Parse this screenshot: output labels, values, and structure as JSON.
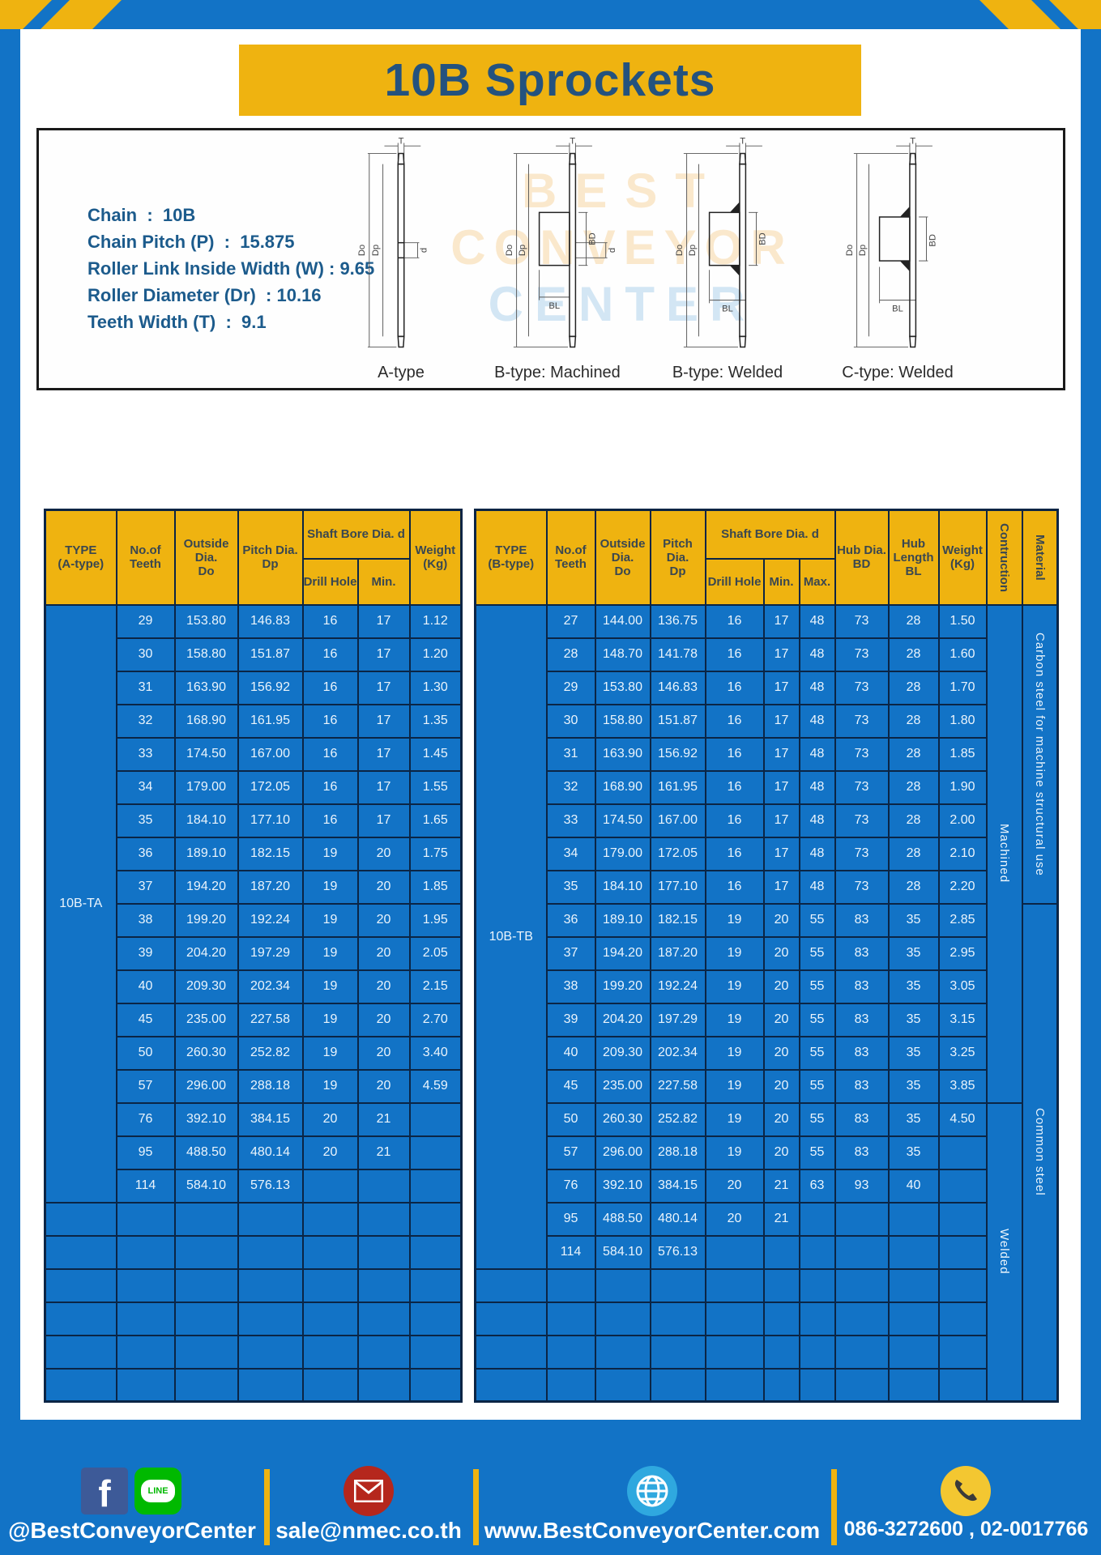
{
  "page": {
    "title": "10B Sprockets"
  },
  "specs": {
    "lines": [
      "Chain  :  10B",
      "Chain Pitch (P)  :  15.875",
      "Roller Link Inside Width (W) : 9.65",
      "Roller Diameter (Dr)  : 10.16",
      "Teeth Width (T)  :  9.1"
    ]
  },
  "diagram": {
    "type_labels": [
      "A-type",
      "B-type: Machined",
      "B-type: Welded",
      "C-type: Welded"
    ],
    "dims": {
      "t": "T",
      "do": "Do",
      "dp": "Dp",
      "d": "d",
      "bl": "BL",
      "bd": "BD"
    },
    "watermark": [
      "BEST",
      "CONVEYOR",
      "CENTER"
    ]
  },
  "colors": {
    "frame_blue": "#1273C6",
    "header_yellow": "#EFB310",
    "cell_blue": "#1273C6",
    "border_navy": "#0B2545",
    "title_blue": "#24527E"
  },
  "tables": {
    "left": {
      "header": {
        "type": "TYPE\n(A-type)",
        "teeth": "No.of\nTeeth",
        "outside": "Outside\nDia.\nDo",
        "pitch": "Pitch Dia.\nDp",
        "shaft_bore": "Shaft Bore Dia. d",
        "drill_hole": "Drill Hole",
        "min": "Min.",
        "weight": "Weight\n(Kg)"
      },
      "type_label": "10B-TA",
      "blank_rows": 6,
      "rows": [
        [
          "29",
          "153.80",
          "146.83",
          "16",
          "17",
          "1.12"
        ],
        [
          "30",
          "158.80",
          "151.87",
          "16",
          "17",
          "1.20"
        ],
        [
          "31",
          "163.90",
          "156.92",
          "16",
          "17",
          "1.30"
        ],
        [
          "32",
          "168.90",
          "161.95",
          "16",
          "17",
          "1.35"
        ],
        [
          "33",
          "174.50",
          "167.00",
          "16",
          "17",
          "1.45"
        ],
        [
          "34",
          "179.00",
          "172.05",
          "16",
          "17",
          "1.55"
        ],
        [
          "35",
          "184.10",
          "177.10",
          "16",
          "17",
          "1.65"
        ],
        [
          "36",
          "189.10",
          "182.15",
          "19",
          "20",
          "1.75"
        ],
        [
          "37",
          "194.20",
          "187.20",
          "19",
          "20",
          "1.85"
        ],
        [
          "38",
          "199.20",
          "192.24",
          "19",
          "20",
          "1.95"
        ],
        [
          "39",
          "204.20",
          "197.29",
          "19",
          "20",
          "2.05"
        ],
        [
          "40",
          "209.30",
          "202.34",
          "19",
          "20",
          "2.15"
        ],
        [
          "45",
          "235.00",
          "227.58",
          "19",
          "20",
          "2.70"
        ],
        [
          "50",
          "260.30",
          "252.82",
          "19",
          "20",
          "3.40"
        ],
        [
          "57",
          "296.00",
          "288.18",
          "19",
          "20",
          "4.59"
        ],
        [
          "76",
          "392.10",
          "384.15",
          "20",
          "21",
          ""
        ],
        [
          "95",
          "488.50",
          "480.14",
          "20",
          "21",
          ""
        ],
        [
          "114",
          "584.10",
          "576.13",
          "",
          "",
          ""
        ]
      ]
    },
    "right": {
      "header": {
        "type": "TYPE\n(B-type)",
        "teeth": "No.of\nTeeth",
        "outside": "Outside\nDia.\nDo",
        "pitch": "Pitch Dia.\nDp",
        "shaft_bore": "Shaft Bore Dia. d",
        "drill_hole": "Drill Hole",
        "min": "Min.",
        "max": "Max.",
        "hub_dia": "Hub Dia.\nBD",
        "hub_length": "Hub\nLength\nBL",
        "weight": "Weight\n(Kg)",
        "construction": "Contruction",
        "material": "Material"
      },
      "type_label": "10B-TB",
      "blank_rows": 4,
      "rows": [
        [
          "27",
          "144.00",
          "136.75",
          "16",
          "17",
          "48",
          "73",
          "28",
          "1.50"
        ],
        [
          "28",
          "148.70",
          "141.78",
          "16",
          "17",
          "48",
          "73",
          "28",
          "1.60"
        ],
        [
          "29",
          "153.80",
          "146.83",
          "16",
          "17",
          "48",
          "73",
          "28",
          "1.70"
        ],
        [
          "30",
          "158.80",
          "151.87",
          "16",
          "17",
          "48",
          "73",
          "28",
          "1.80"
        ],
        [
          "31",
          "163.90",
          "156.92",
          "16",
          "17",
          "48",
          "73",
          "28",
          "1.85"
        ],
        [
          "32",
          "168.90",
          "161.95",
          "16",
          "17",
          "48",
          "73",
          "28",
          "1.90"
        ],
        [
          "33",
          "174.50",
          "167.00",
          "16",
          "17",
          "48",
          "73",
          "28",
          "2.00"
        ],
        [
          "34",
          "179.00",
          "172.05",
          "16",
          "17",
          "48",
          "73",
          "28",
          "2.10"
        ],
        [
          "35",
          "184.10",
          "177.10",
          "16",
          "17",
          "48",
          "73",
          "28",
          "2.20"
        ],
        [
          "36",
          "189.10",
          "182.15",
          "19",
          "20",
          "55",
          "83",
          "35",
          "2.85"
        ],
        [
          "37",
          "194.20",
          "187.20",
          "19",
          "20",
          "55",
          "83",
          "35",
          "2.95"
        ],
        [
          "38",
          "199.20",
          "192.24",
          "19",
          "20",
          "55",
          "83",
          "35",
          "3.05"
        ],
        [
          "39",
          "204.20",
          "197.29",
          "19",
          "20",
          "55",
          "83",
          "35",
          "3.15"
        ],
        [
          "40",
          "209.30",
          "202.34",
          "19",
          "20",
          "55",
          "83",
          "35",
          "3.25"
        ],
        [
          "45",
          "235.00",
          "227.58",
          "19",
          "20",
          "55",
          "83",
          "35",
          "3.85"
        ],
        [
          "50",
          "260.30",
          "252.82",
          "19",
          "20",
          "55",
          "83",
          "35",
          "4.50"
        ],
        [
          "57",
          "296.00",
          "288.18",
          "19",
          "20",
          "55",
          "83",
          "35",
          ""
        ],
        [
          "76",
          "392.10",
          "384.15",
          "20",
          "21",
          "63",
          "93",
          "40",
          ""
        ],
        [
          "95",
          "488.50",
          "480.14",
          "20",
          "21",
          "",
          "",
          "",
          ""
        ],
        [
          "114",
          "584.10",
          "576.13",
          "",
          "",
          "",
          "",
          "",
          ""
        ]
      ],
      "construction_groups": [
        {
          "label": "Machined",
          "rows": 15
        },
        {
          "label": "Welded",
          "rows": 9
        }
      ],
      "material_groups": [
        {
          "label": "Carbon steel for  machine structural use",
          "rows": 9
        },
        {
          "label": "Common steel",
          "rows": 15
        }
      ]
    }
  },
  "footer": {
    "social_label": "@BestConveyorCenter",
    "line_text": "LINE",
    "facebook_letter": "f",
    "email": "sale@nmec.co.th",
    "website": "www.BestConveyorCenter.com",
    "phone": "086-3272600 , 02-0017766"
  }
}
